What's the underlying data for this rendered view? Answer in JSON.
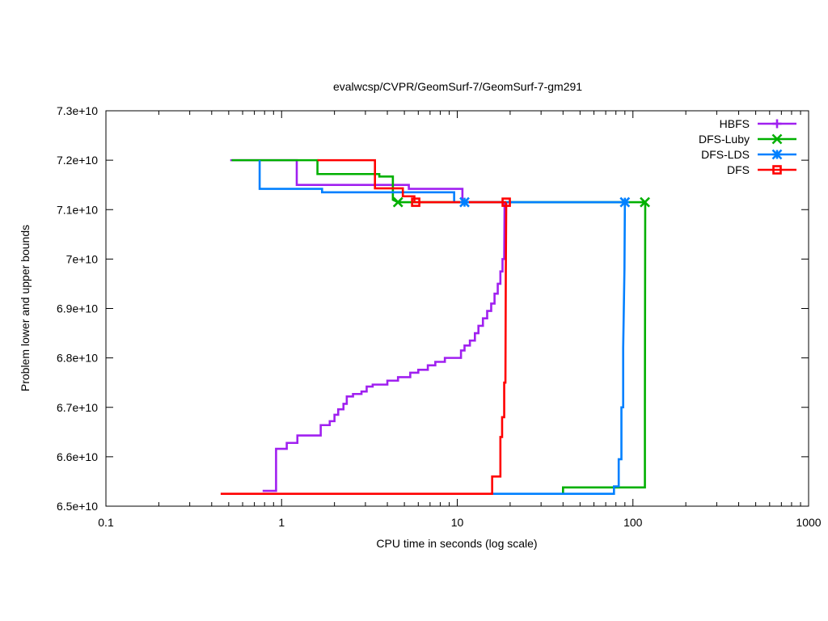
{
  "chart_data": {
    "type": "line",
    "title": "evalwcsp/CVPR/GeomSurf-7/GeomSurf-7-gm291",
    "xlabel": "CPU time in seconds (log scale)",
    "ylabel": "Problem lower and upper bounds",
    "x_scale": "log",
    "xlim": [
      0.1,
      1000
    ],
    "ylim": [
      65000000000,
      73000000000
    ],
    "x_ticks": [
      {
        "value": 0.1,
        "label": "0.1"
      },
      {
        "value": 1,
        "label": "1"
      },
      {
        "value": 10,
        "label": "10"
      },
      {
        "value": 100,
        "label": "100"
      },
      {
        "value": 1000,
        "label": "1000"
      }
    ],
    "y_ticks": [
      {
        "value": 65000000000,
        "label": "6.5e+10"
      },
      {
        "value": 66000000000,
        "label": "6.6e+10"
      },
      {
        "value": 67000000000,
        "label": "6.7e+10"
      },
      {
        "value": 68000000000,
        "label": "6.8e+10"
      },
      {
        "value": 69000000000,
        "label": "6.9e+10"
      },
      {
        "value": 70000000000,
        "label": "7e+10"
      },
      {
        "value": 71000000000,
        "label": "7.1e+10"
      },
      {
        "value": 72000000000,
        "label": "7.2e+10"
      },
      {
        "value": 73000000000,
        "label": "7.3e+10"
      }
    ],
    "grid": false,
    "legend_position": "top-right",
    "series": [
      {
        "name": "HBFS",
        "color": "#a020f0",
        "marker": "plus",
        "upper": [
          [
            0.51,
            72000000000
          ],
          [
            1.22,
            72000000000
          ],
          [
            1.22,
            71500000000
          ],
          [
            5.3,
            71500000000
          ],
          [
            5.3,
            71420000000
          ],
          [
            10.7,
            71420000000
          ],
          [
            10.7,
            71150000000
          ],
          [
            18.5,
            71150000000
          ]
        ],
        "lower": [
          [
            0.78,
            65310000000
          ],
          [
            0.93,
            65310000000
          ],
          [
            0.93,
            66160000000
          ],
          [
            1.07,
            66160000000
          ],
          [
            1.07,
            66280000000
          ],
          [
            1.23,
            66280000000
          ],
          [
            1.23,
            66430000000
          ],
          [
            1.67,
            66430000000
          ],
          [
            1.67,
            66640000000
          ],
          [
            1.88,
            66640000000
          ],
          [
            1.88,
            66720000000
          ],
          [
            2.0,
            66720000000
          ],
          [
            2.0,
            66850000000
          ],
          [
            2.1,
            66850000000
          ],
          [
            2.1,
            66960000000
          ],
          [
            2.25,
            66960000000
          ],
          [
            2.25,
            67070000000
          ],
          [
            2.35,
            67070000000
          ],
          [
            2.35,
            67220000000
          ],
          [
            2.55,
            67220000000
          ],
          [
            2.55,
            67270000000
          ],
          [
            2.85,
            67270000000
          ],
          [
            2.85,
            67320000000
          ],
          [
            3.05,
            67320000000
          ],
          [
            3.05,
            67420000000
          ],
          [
            3.3,
            67420000000
          ],
          [
            3.3,
            67460000000
          ],
          [
            4.0,
            67460000000
          ],
          [
            4.0,
            67540000000
          ],
          [
            4.6,
            67540000000
          ],
          [
            4.6,
            67610000000
          ],
          [
            5.4,
            67610000000
          ],
          [
            5.4,
            67700000000
          ],
          [
            6.0,
            67700000000
          ],
          [
            6.0,
            67760000000
          ],
          [
            6.8,
            67760000000
          ],
          [
            6.8,
            67850000000
          ],
          [
            7.5,
            67850000000
          ],
          [
            7.5,
            67920000000
          ],
          [
            8.5,
            67920000000
          ],
          [
            8.5,
            68000000000
          ],
          [
            10.5,
            68000000000
          ],
          [
            10.5,
            68150000000
          ],
          [
            11.0,
            68150000000
          ],
          [
            11.0,
            68250000000
          ],
          [
            11.8,
            68250000000
          ],
          [
            11.8,
            68350000000
          ],
          [
            12.6,
            68350000000
          ],
          [
            12.6,
            68500000000
          ],
          [
            13.2,
            68500000000
          ],
          [
            13.2,
            68650000000
          ],
          [
            14.0,
            68650000000
          ],
          [
            14.0,
            68800000000
          ],
          [
            14.8,
            68800000000
          ],
          [
            14.8,
            68950000000
          ],
          [
            15.6,
            68950000000
          ],
          [
            15.6,
            69100000000
          ],
          [
            16.3,
            69100000000
          ],
          [
            16.3,
            69300000000
          ],
          [
            17.0,
            69300000000
          ],
          [
            17.0,
            69500000000
          ],
          [
            17.6,
            69500000000
          ],
          [
            17.6,
            69750000000
          ],
          [
            18.1,
            69750000000
          ],
          [
            18.1,
            70000000000
          ],
          [
            18.5,
            70000000000
          ],
          [
            18.6,
            71150000000
          ]
        ]
      },
      {
        "name": "DFS-Luby",
        "color": "#00b000",
        "marker": "cross",
        "upper": [
          [
            0.52,
            72000000000
          ],
          [
            1.6,
            72000000000
          ],
          [
            1.6,
            71720000000
          ],
          [
            3.6,
            71720000000
          ],
          [
            3.6,
            71670000000
          ],
          [
            4.3,
            71670000000
          ],
          [
            4.3,
            71200000000
          ],
          [
            4.6,
            71150000000
          ],
          [
            117,
            71150000000
          ]
        ],
        "lower": [
          [
            40,
            65250000000
          ],
          [
            40,
            65380000000
          ],
          [
            117,
            65380000000
          ],
          [
            117,
            67000000000
          ],
          [
            117.5,
            71150000000
          ]
        ]
      },
      {
        "name": "DFS-LDS",
        "color": "#0080ff",
        "marker": "asterisk",
        "upper": [
          [
            0.75,
            72000000000
          ],
          [
            0.75,
            71420000000
          ],
          [
            1.7,
            71420000000
          ],
          [
            1.7,
            71350000000
          ],
          [
            9.6,
            71350000000
          ],
          [
            9.6,
            71150000000
          ],
          [
            90,
            71150000000
          ]
        ],
        "lower": [
          [
            15.5,
            65250000000
          ],
          [
            78,
            65250000000
          ],
          [
            78,
            65400000000
          ],
          [
            83,
            65400000000
          ],
          [
            83,
            65950000000
          ],
          [
            86,
            65950000000
          ],
          [
            86,
            67000000000
          ],
          [
            88,
            67000000000
          ],
          [
            88,
            68200000000
          ],
          [
            89.5,
            69800000000
          ],
          [
            90,
            71150000000
          ]
        ]
      },
      {
        "name": "DFS",
        "color": "#ff0000",
        "marker": "square",
        "upper": [
          [
            1.6,
            72000000000
          ],
          [
            3.4,
            72000000000
          ],
          [
            3.4,
            71430000000
          ],
          [
            4.9,
            71430000000
          ],
          [
            4.9,
            71270000000
          ],
          [
            5.7,
            71270000000
          ],
          [
            5.7,
            71150000000
          ],
          [
            19.0,
            71150000000
          ]
        ],
        "lower": [
          [
            0.45,
            65250000000
          ],
          [
            15.8,
            65250000000
          ],
          [
            15.8,
            65600000000
          ],
          [
            17.6,
            65600000000
          ],
          [
            17.6,
            66400000000
          ],
          [
            18.0,
            66400000000
          ],
          [
            18.0,
            66800000000
          ],
          [
            18.5,
            66800000000
          ],
          [
            18.5,
            67500000000
          ],
          [
            18.8,
            67500000000
          ],
          [
            18.9,
            69800000000
          ],
          [
            19.0,
            71150000000
          ]
        ]
      }
    ],
    "end_markers": [
      {
        "series": "DFS-Luby",
        "x": 4.6,
        "y": 71150000000
      },
      {
        "series": "DFS-Luby",
        "x": 117,
        "y": 71150000000
      },
      {
        "series": "DFS-LDS",
        "x": 11.0,
        "y": 71150000000
      },
      {
        "series": "DFS-LDS",
        "x": 90,
        "y": 71150000000
      },
      {
        "series": "DFS",
        "x": 5.8,
        "y": 71150000000
      },
      {
        "series": "DFS",
        "x": 19.0,
        "y": 71150000000
      }
    ]
  }
}
